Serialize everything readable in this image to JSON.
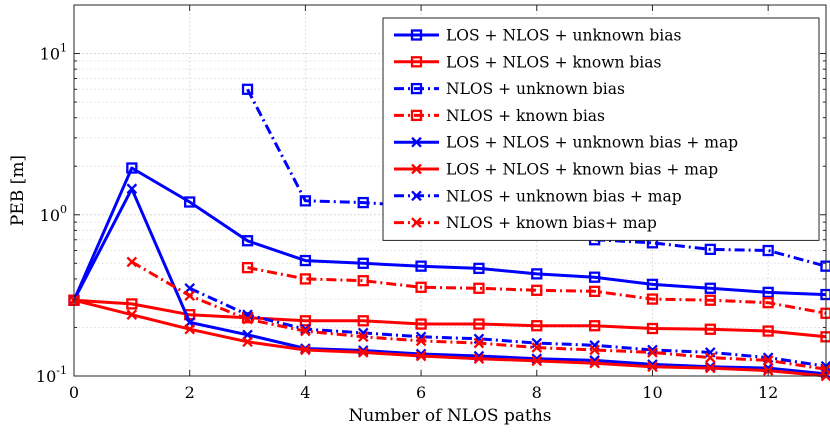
{
  "chart_data": {
    "type": "line",
    "xlabel": "Number of NLOS paths",
    "ylabel": "PEB [m]",
    "yscale": "log",
    "xlim": [
      0,
      13
    ],
    "ylim": [
      0.1,
      20
    ],
    "grid": true,
    "legend_position": "top-right",
    "x_ticks": [
      {
        "value": 0,
        "label": "0"
      },
      {
        "value": 2,
        "label": "2"
      },
      {
        "value": 4,
        "label": "4"
      },
      {
        "value": 6,
        "label": "6"
      },
      {
        "value": 8,
        "label": "8"
      },
      {
        "value": 10,
        "label": "10"
      },
      {
        "value": 12,
        "label": "12"
      }
    ],
    "y_ticks": [
      {
        "value": 0.1,
        "base": "10",
        "exp": "-1"
      },
      {
        "value": 1,
        "base": "10",
        "exp": "0"
      },
      {
        "value": 10,
        "base": "10",
        "exp": "1"
      }
    ],
    "series": [
      {
        "name": "LOS + NLOS + unknown bias",
        "color": "#0000ff",
        "dash": "solid",
        "marker": "square",
        "x": [
          0,
          1,
          2,
          3,
          4,
          5,
          6,
          7,
          8,
          9,
          10,
          11,
          12,
          13
        ],
        "y": [
          0.295,
          1.95,
          1.2,
          0.69,
          0.52,
          0.5,
          0.48,
          0.465,
          0.43,
          0.41,
          0.37,
          0.35,
          0.33,
          0.32
        ]
      },
      {
        "name": "LOS + NLOS + known bias",
        "color": "#ff0000",
        "dash": "solid",
        "marker": "square",
        "x": [
          0,
          1,
          2,
          3,
          4,
          5,
          6,
          7,
          8,
          9,
          10,
          11,
          12,
          13
        ],
        "y": [
          0.295,
          0.28,
          0.24,
          0.23,
          0.22,
          0.22,
          0.21,
          0.21,
          0.205,
          0.205,
          0.197,
          0.195,
          0.19,
          0.175
        ]
      },
      {
        "name": "NLOS + unknown bias",
        "color": "#0000ff",
        "dash": "dashdot",
        "marker": "square",
        "x": [
          3,
          4,
          5,
          6,
          7,
          8,
          9,
          10,
          11,
          12,
          13
        ],
        "y": [
          6.0,
          1.22,
          1.19,
          1.13,
          1.05,
          0.77,
          0.7,
          0.67,
          0.61,
          0.6,
          0.48
        ]
      },
      {
        "name": "NLOS + known bias",
        "color": "#ff0000",
        "dash": "dashdot",
        "marker": "square",
        "x": [
          3,
          4,
          5,
          6,
          7,
          8,
          9,
          10,
          11,
          12,
          13
        ],
        "y": [
          0.47,
          0.4,
          0.39,
          0.355,
          0.35,
          0.34,
          0.335,
          0.3,
          0.295,
          0.285,
          0.245
        ]
      },
      {
        "name": "LOS + NLOS + unknown bias + map",
        "color": "#0000ff",
        "dash": "solid",
        "marker": "x",
        "x": [
          0,
          1,
          2,
          3,
          4,
          5,
          6,
          7,
          8,
          9,
          10,
          11,
          12,
          13
        ],
        "y": [
          0.295,
          1.45,
          0.215,
          0.18,
          0.148,
          0.144,
          0.137,
          0.133,
          0.128,
          0.125,
          0.118,
          0.114,
          0.112,
          0.103
        ]
      },
      {
        "name": "LOS + NLOS + known bias + map",
        "color": "#ff0000",
        "dash": "solid",
        "marker": "x",
        "x": [
          0,
          1,
          2,
          3,
          4,
          5,
          6,
          7,
          8,
          9,
          10,
          11,
          12,
          13
        ],
        "y": [
          0.295,
          0.24,
          0.195,
          0.163,
          0.145,
          0.14,
          0.133,
          0.128,
          0.124,
          0.12,
          0.114,
          0.112,
          0.108,
          0.1
        ]
      },
      {
        "name": "NLOS + unknown bias + map",
        "color": "#0000ff",
        "dash": "dashdot",
        "marker": "x",
        "x": [
          2,
          3,
          4,
          5,
          6,
          7,
          8,
          9,
          10,
          11,
          12,
          13
        ],
        "y": [
          0.35,
          0.24,
          0.195,
          0.185,
          0.175,
          0.17,
          0.16,
          0.155,
          0.145,
          0.14,
          0.13,
          0.115
        ]
      },
      {
        "name": "NLOS + known bias+ map",
        "color": "#ff0000",
        "dash": "dashdot",
        "marker": "x",
        "x": [
          1,
          2,
          3,
          4,
          5,
          6,
          7,
          8,
          9,
          10,
          11,
          12,
          13
        ],
        "y": [
          0.51,
          0.315,
          0.225,
          0.19,
          0.175,
          0.165,
          0.16,
          0.15,
          0.145,
          0.14,
          0.13,
          0.125,
          0.11
        ]
      }
    ]
  }
}
